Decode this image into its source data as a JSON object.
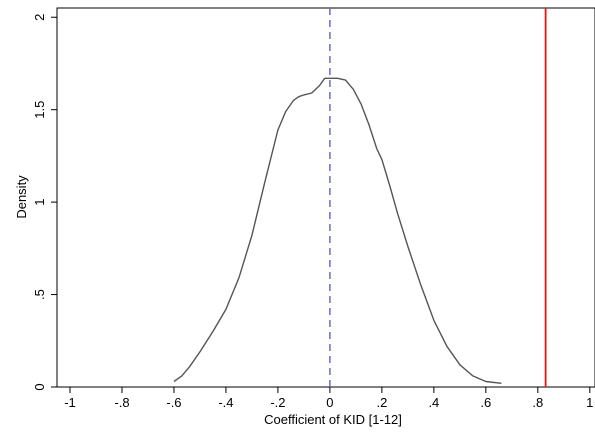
{
  "chart_data": {
    "type": "line",
    "xlabel": "Coefficient of KID [1-12]",
    "ylabel": "Density",
    "xlim": [
      -1.05,
      1.02
    ],
    "ylim": [
      0,
      2.05
    ],
    "x_ticks": [
      {
        "value": -1,
        "label": "-1"
      },
      {
        "value": -0.8,
        "label": "-.8"
      },
      {
        "value": -0.6,
        "label": "-.6"
      },
      {
        "value": -0.4,
        "label": "-.4"
      },
      {
        "value": -0.2,
        "label": "-.2"
      },
      {
        "value": 0,
        "label": "0"
      },
      {
        "value": 0.2,
        "label": ".2"
      },
      {
        "value": 0.4,
        "label": ".4"
      },
      {
        "value": 0.6,
        "label": ".6"
      },
      {
        "value": 0.8,
        "label": ".8"
      },
      {
        "value": 1,
        "label": "1"
      }
    ],
    "y_ticks": [
      {
        "value": 0,
        "label": "0"
      },
      {
        "value": 0.5,
        "label": ".5"
      },
      {
        "value": 1,
        "label": "1"
      },
      {
        "value": 1.5,
        "label": "1.5"
      },
      {
        "value": 2,
        "label": "2"
      }
    ],
    "grid": false,
    "series": [
      {
        "color": "#555555",
        "x": [
          -0.6,
          -0.57,
          -0.54,
          -0.5,
          -0.45,
          -0.4,
          -0.35,
          -0.3,
          -0.25,
          -0.2,
          -0.17,
          -0.14,
          -0.12,
          -0.1,
          -0.07,
          -0.04,
          -0.02,
          0.0,
          0.03,
          0.06,
          0.09,
          0.12,
          0.15,
          0.18,
          0.2,
          0.23,
          0.26,
          0.3,
          0.35,
          0.4,
          0.45,
          0.5,
          0.55,
          0.6,
          0.66
        ],
        "y": [
          0.03,
          0.06,
          0.11,
          0.19,
          0.3,
          0.42,
          0.59,
          0.82,
          1.11,
          1.39,
          1.49,
          1.55,
          1.57,
          1.58,
          1.59,
          1.63,
          1.67,
          1.67,
          1.67,
          1.66,
          1.61,
          1.53,
          1.42,
          1.29,
          1.23,
          1.09,
          0.94,
          0.76,
          0.55,
          0.36,
          0.22,
          0.12,
          0.06,
          0.03,
          0.02
        ]
      }
    ],
    "reference_lines": [
      {
        "axis": "x",
        "value": 0,
        "color": "#6a6acd",
        "style": "dashed"
      },
      {
        "axis": "x",
        "value": 0.83,
        "color": "#e8140a",
        "style": "solid"
      }
    ]
  }
}
